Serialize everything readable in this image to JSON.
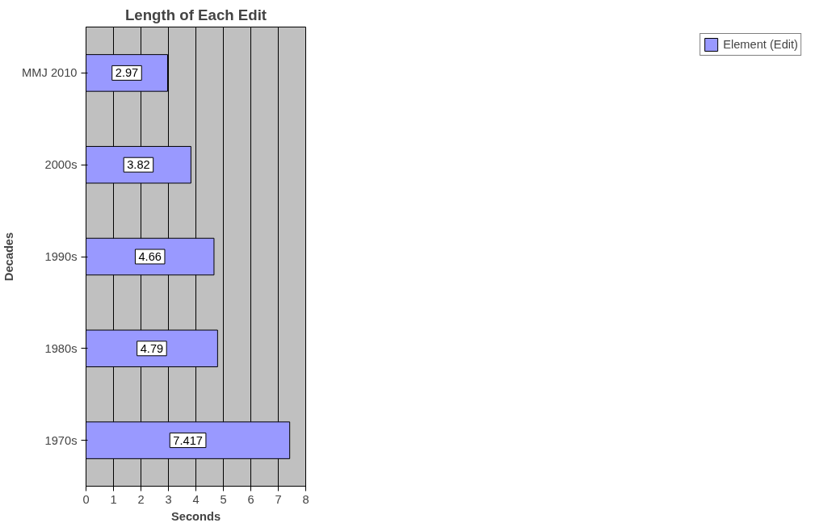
{
  "chart_data": {
    "type": "bar",
    "orientation": "horizontal",
    "title": "Length of Each Edit",
    "xlabel": "Seconds",
    "ylabel": "Decades",
    "categories": [
      "MMJ 2010",
      "2000s",
      "1990s",
      "1980s",
      "1970s"
    ],
    "series": [
      {
        "name": "Element (Edit)",
        "color": "#9999ff",
        "values": [
          2.97,
          3.82,
          4.66,
          4.79,
          7.417
        ]
      }
    ],
    "xlim": [
      0,
      8
    ],
    "xticks": [
      0,
      1,
      2,
      3,
      4,
      5,
      6,
      7,
      8
    ],
    "grid": "x",
    "legend": "right",
    "data_labels": true
  }
}
